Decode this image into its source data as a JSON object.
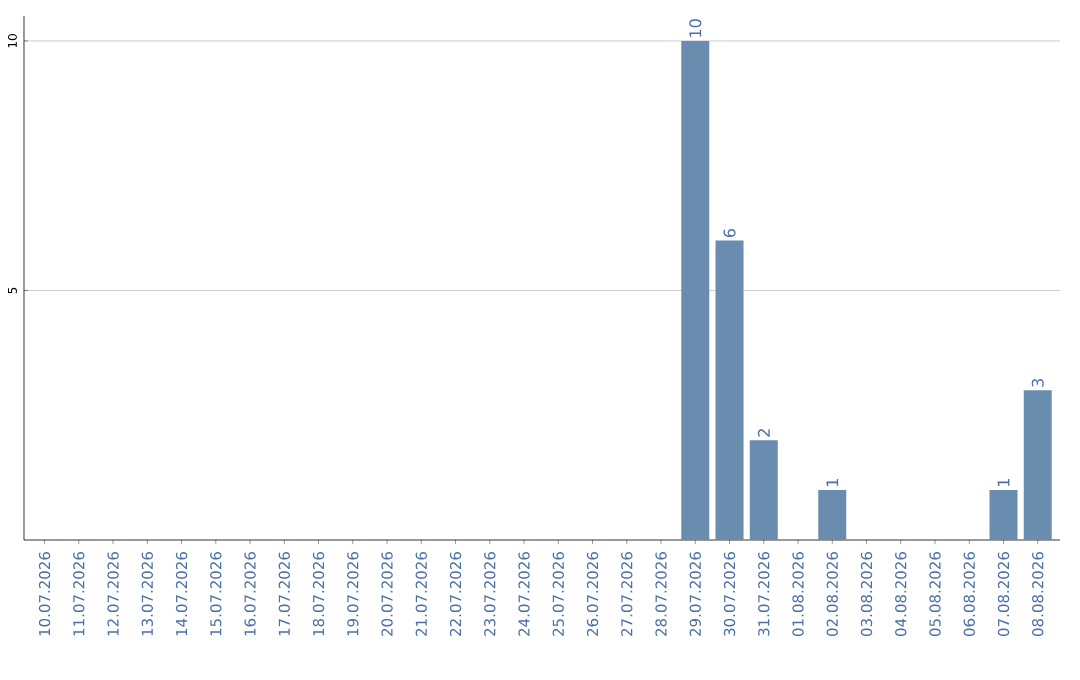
{
  "chart_data": {
    "type": "bar",
    "categories": [
      "10.07.2026",
      "11.07.2026",
      "12.07.2026",
      "13.07.2026",
      "14.07.2026",
      "15.07.2026",
      "16.07.2026",
      "17.07.2026",
      "18.07.2026",
      "19.07.2026",
      "20.07.2026",
      "21.07.2026",
      "22.07.2026",
      "23.07.2026",
      "24.07.2026",
      "25.07.2026",
      "26.07.2026",
      "27.07.2026",
      "28.07.2026",
      "29.07.2026",
      "30.07.2026",
      "31.07.2026",
      "01.08.2026",
      "02.08.2026",
      "03.08.2026",
      "04.08.2026",
      "05.08.2026",
      "06.08.2026",
      "07.08.2026",
      "08.08.2026"
    ],
    "values": [
      0,
      0,
      0,
      0,
      0,
      0,
      0,
      0,
      0,
      0,
      0,
      0,
      0,
      0,
      0,
      0,
      0,
      0,
      0,
      10,
      6,
      2,
      0,
      1,
      0,
      0,
      0,
      0,
      1,
      3
    ],
    "value_labels": [
      null,
      null,
      null,
      null,
      null,
      null,
      null,
      null,
      null,
      null,
      null,
      null,
      null,
      null,
      null,
      null,
      null,
      null,
      null,
      "10",
      "6",
      "2",
      null,
      "1",
      null,
      null,
      null,
      null,
      "1",
      "3"
    ],
    "color": "#6a8cae",
    "ylim": [
      0,
      10.5
    ],
    "yticks": [
      5,
      10
    ],
    "grid": "y"
  }
}
